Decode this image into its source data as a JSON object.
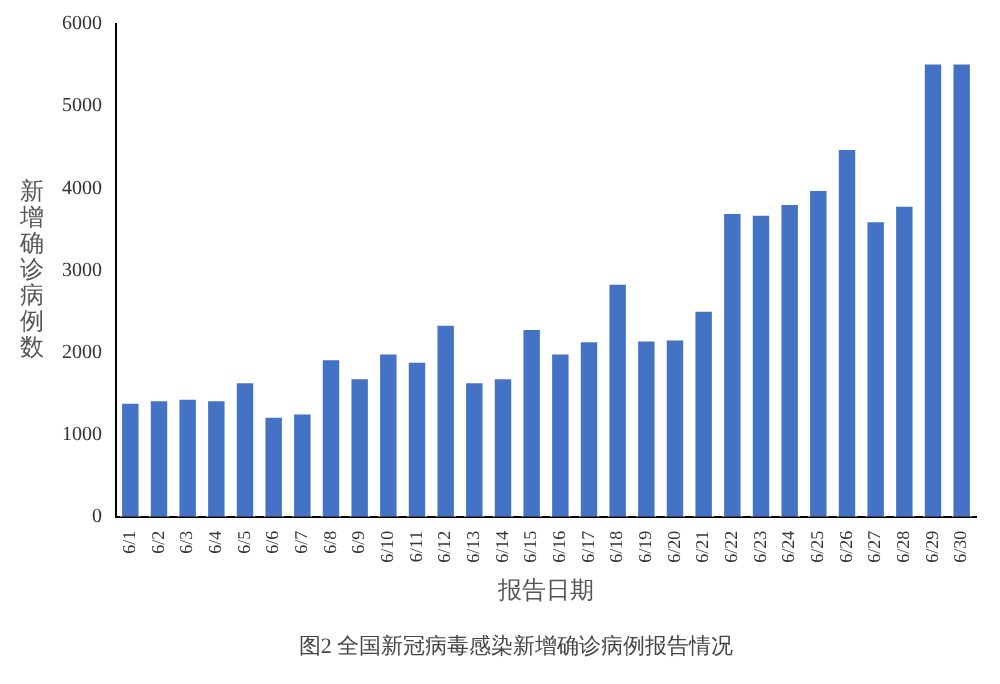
{
  "chart_data": {
    "type": "bar",
    "title": "图2 全国新冠病毒感染新增确诊病例报告情况",
    "xlabel": "报告日期",
    "ylabel": "新增确诊病例数",
    "categories": [
      "6/1",
      "6/2",
      "6/3",
      "6/4",
      "6/5",
      "6/6",
      "6/7",
      "6/8",
      "6/9",
      "6/10",
      "6/11",
      "6/12",
      "6/13",
      "6/14",
      "6/15",
      "6/16",
      "6/17",
      "6/18",
      "6/19",
      "6/20",
      "6/21",
      "6/22",
      "6/23",
      "6/24",
      "6/25",
      "6/26",
      "6/27",
      "6/28",
      "6/29",
      "6/30"
    ],
    "values": [
      1400,
      1430,
      1450,
      1430,
      1650,
      1230,
      1270,
      1930,
      1700,
      2000,
      1900,
      2350,
      1650,
      1700,
      2300,
      2000,
      2150,
      2850,
      2160,
      2170,
      2520,
      3710,
      3690,
      3820,
      3990,
      4490,
      3610,
      3800,
      5530,
      5530
    ],
    "color": "#4472c4",
    "ylim": [
      0,
      6000
    ],
    "yticks": [
      0,
      1000,
      2000,
      3000,
      4000,
      5000,
      6000
    ],
    "grid": false,
    "legend": false
  }
}
